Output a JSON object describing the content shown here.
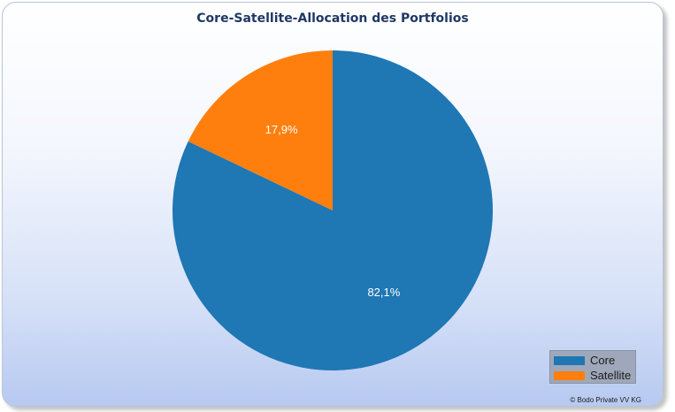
{
  "chart_data": {
    "type": "pie",
    "title": "Core-Satellite-Allocation des Portfolios",
    "slices": [
      {
        "name": "Core",
        "value": 82.1,
        "label": "82,1%",
        "color": "#1f77b4"
      },
      {
        "name": "Satellite",
        "value": 17.9,
        "label": "17,9%",
        "color": "#ff7f0e"
      }
    ],
    "legend": "bottom-right"
  },
  "footer": {
    "copyright": "© Bodo Private VV KG"
  }
}
